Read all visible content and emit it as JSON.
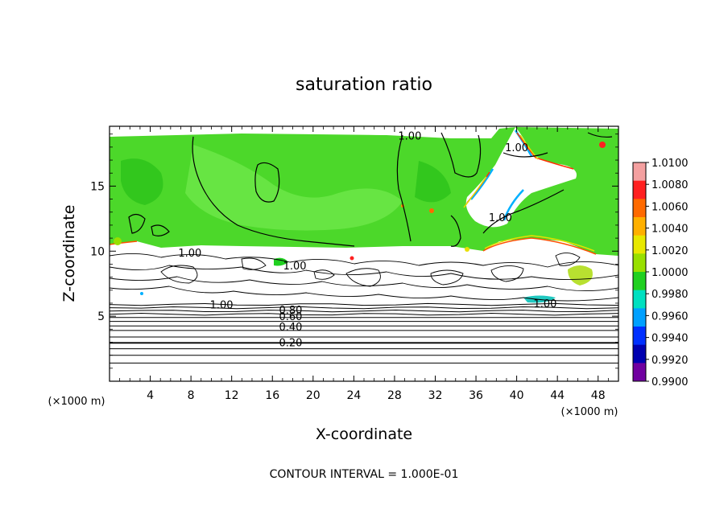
{
  "chart_data": {
    "type": "heatmap",
    "title": "saturation ratio",
    "xlabel": "X-coordinate",
    "ylabel": "Z-coordinate",
    "x_unit_label": "(×1000 m)",
    "y_unit_label": "(×1000 m)",
    "xlim": [
      0,
      50
    ],
    "ylim": [
      0,
      19.6
    ],
    "x_ticks": [
      4,
      8,
      12,
      16,
      20,
      24,
      28,
      32,
      36,
      40,
      44,
      48
    ],
    "y_ticks": [
      5,
      10,
      15
    ],
    "footnote": "CONTOUR INTERVAL = 1.000E-01",
    "colorbar": {
      "levels": [
        "1.0100",
        "1.0080",
        "1.0060",
        "1.0040",
        "1.0020",
        "1.0000",
        "0.9980",
        "0.9960",
        "0.9940",
        "0.9920",
        "0.9900"
      ],
      "colors": [
        "#f4a0a0",
        "#ff2020",
        "#ff6a00",
        "#ffb000",
        "#e8e800",
        "#98e000",
        "#20d020",
        "#00e0c0",
        "#00a0ff",
        "#0030ff",
        "#0000b0",
        "#7000a0"
      ]
    },
    "contour_labels": [
      {
        "text": "1.00",
        "x": 29.5,
        "y": 18.9
      },
      {
        "text": "1.00",
        "x": 40.0,
        "y": 18.0
      },
      {
        "text": "1.00",
        "x": 38.4,
        "y": 12.6
      },
      {
        "text": "1.00",
        "x": 7.9,
        "y": 9.9
      },
      {
        "text": "1.00",
        "x": 18.2,
        "y": 8.9
      },
      {
        "text": "1.00",
        "x": 11.0,
        "y": 5.9
      },
      {
        "text": "1.00",
        "x": 42.8,
        "y": 6.0
      },
      {
        "text": "0.80",
        "x": 17.8,
        "y": 5.5
      },
      {
        "text": "0.60",
        "x": 17.8,
        "y": 5.0
      },
      {
        "text": "0.40",
        "x": 17.8,
        "y": 4.2
      },
      {
        "text": "0.20",
        "x": 17.8,
        "y": 3.0
      }
    ],
    "contour_levels_z": [
      5.9,
      5.65,
      5.4,
      5.15,
      4.9,
      4.6,
      4.25,
      3.9,
      3.4,
      2.95,
      2.5,
      2.0,
      1.4
    ]
  }
}
